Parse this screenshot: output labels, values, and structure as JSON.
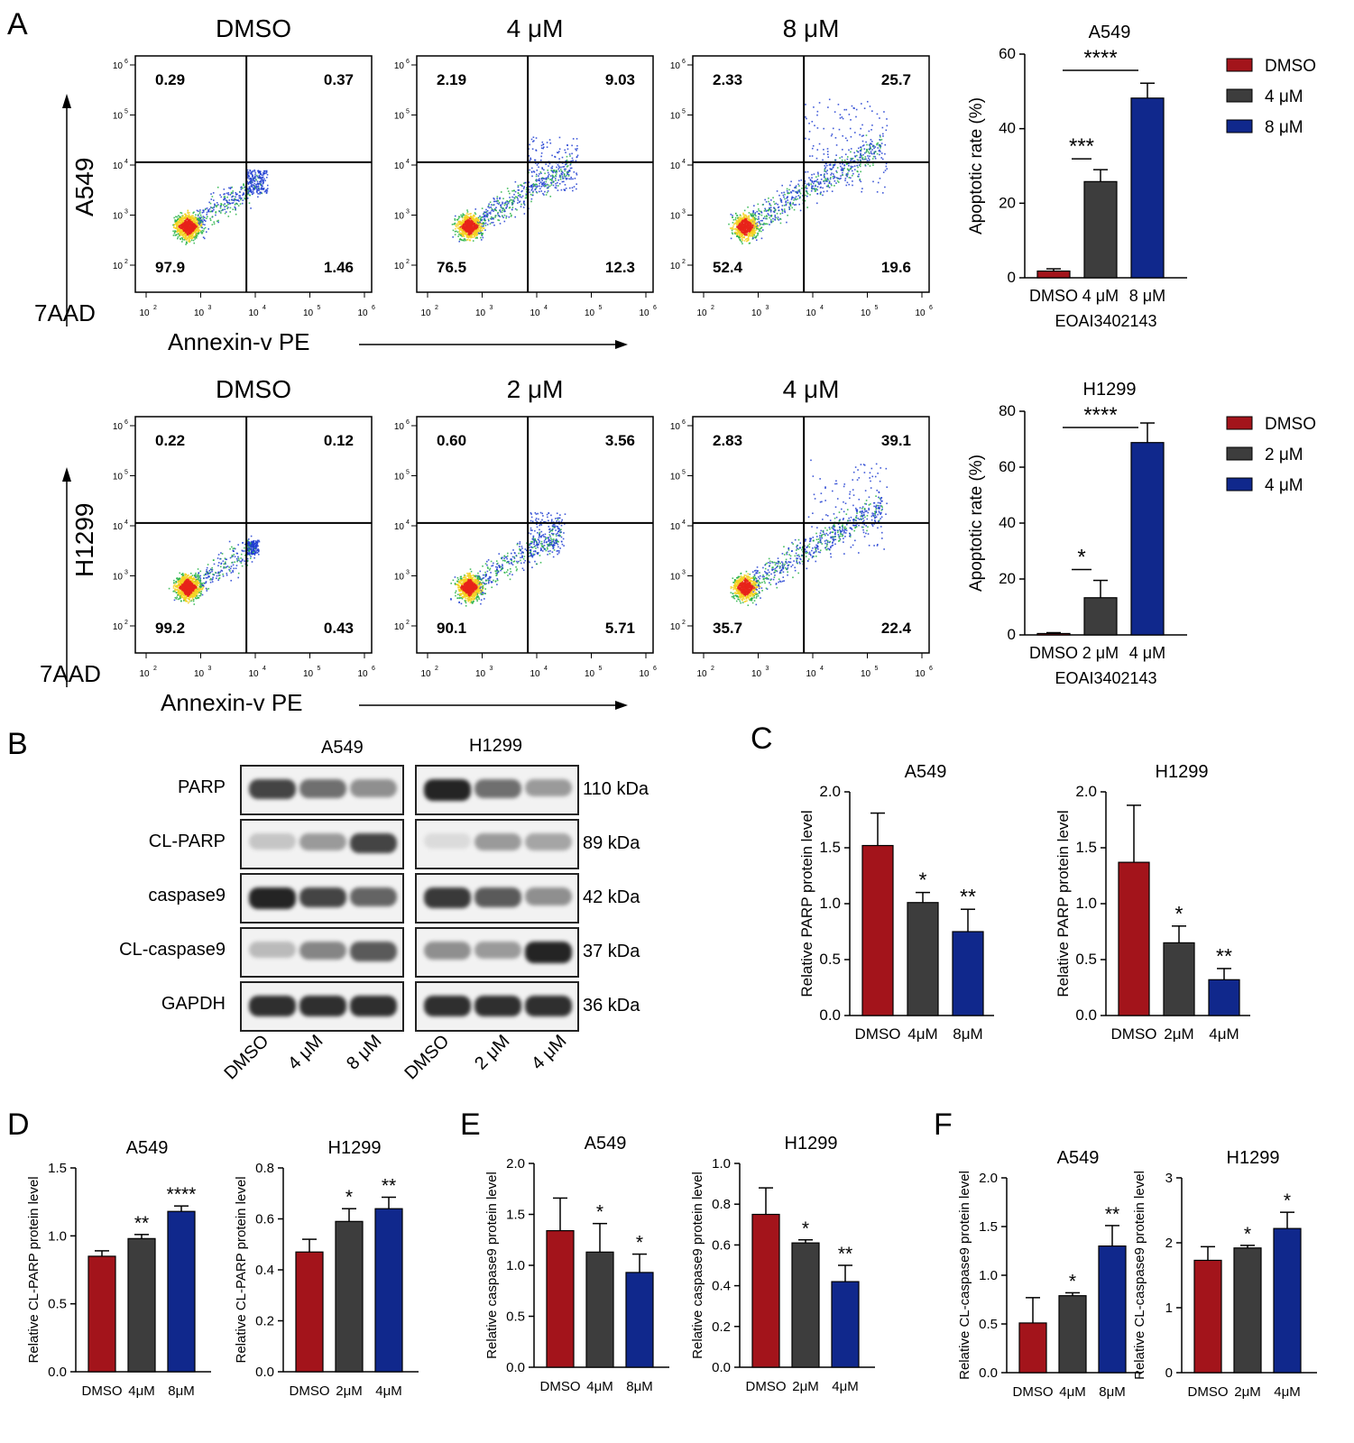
{
  "letters": {
    "A": "A",
    "B": "B",
    "C": "C",
    "D": "D",
    "E": "E",
    "F": "F"
  },
  "flow_common": {
    "y_label": "7AAD",
    "x_label": "Annexin-v  PE",
    "ticks": [
      "10",
      "10",
      "10",
      "10",
      "10"
    ],
    "tick_exps": [
      "2",
      "3",
      "4",
      "5",
      "6"
    ]
  },
  "flow_rows": [
    {
      "cell_line": "A549",
      "plots": [
        {
          "title": "DMSO",
          "q": [
            "0.29",
            "0.37",
            "97.9",
            "1.46"
          ],
          "spread": 0.25
        },
        {
          "title": "4 μM",
          "q": [
            "2.19",
            "9.03",
            "76.5",
            "12.3"
          ],
          "spread": 0.6
        },
        {
          "title": "8 μM",
          "q": [
            "2.33",
            "25.7",
            "52.4",
            "19.6"
          ],
          "spread": 1.0
        }
      ]
    },
    {
      "cell_line": "H1299",
      "plots": [
        {
          "title": "DMSO",
          "q": [
            "0.22",
            "0.12",
            "99.2",
            "0.43"
          ],
          "spread": 0.15
        },
        {
          "title": "2 μM",
          "q": [
            "0.60",
            "3.56",
            "90.1",
            "5.71"
          ],
          "spread": 0.45
        },
        {
          "title": "4 μM",
          "q": [
            "2.83",
            "39.1",
            "35.7",
            "22.4"
          ],
          "spread": 1.0
        }
      ]
    }
  ],
  "blot": {
    "headers": [
      "A549",
      "H1299"
    ],
    "proteins": [
      "PARP",
      "CL-PARP",
      "caspase9",
      "CL-caspase9",
      "GAPDH"
    ],
    "kda": [
      "110 kDa",
      "89 kDa",
      "42 kDa",
      "37 kDa",
      "36 kDa"
    ],
    "lanes_left": [
      "DMSO",
      "4 μM",
      "8 μM"
    ],
    "lanes_right": [
      "DMSO",
      "2 μM",
      "4 μM"
    ]
  },
  "colors": {
    "DMSO": "#a3141b",
    "mid": "#3d3d3d",
    "high": "#10288c"
  },
  "chart_data": [
    {
      "type": "bar",
      "title": "A549",
      "xlabel": "EOAI3402143",
      "ylabel": "Apoptotic rate (%)",
      "categories": [
        "DMSO",
        "4 μM",
        "8 μM"
      ],
      "values": [
        1.8,
        25.8,
        48.2
      ],
      "errors": [
        0.6,
        3.2,
        4.0
      ],
      "ylim": [
        0,
        60
      ],
      "yticks": [
        "0",
        "20",
        "40",
        "60"
      ],
      "legend": [
        "DMSO",
        "4 μM",
        "8 μM"
      ],
      "sig": [
        {
          "from": 0,
          "to": 1,
          "text": "***"
        },
        {
          "from": 0,
          "to": 2,
          "text": "****"
        }
      ]
    },
    {
      "type": "bar",
      "title": "H1299",
      "xlabel": "EOAI3402143",
      "ylabel": "Apoptotic rate (%)",
      "categories": [
        "DMSO",
        "2 μM",
        "4 μM"
      ],
      "values": [
        0.5,
        13.3,
        68.8
      ],
      "errors": [
        0.3,
        6.2,
        7.0
      ],
      "ylim": [
        0,
        80
      ],
      "yticks": [
        "0",
        "20",
        "40",
        "60",
        "80"
      ],
      "legend": [
        "DMSO",
        "2 μM",
        "4 μM"
      ],
      "sig": [
        {
          "from": 0,
          "to": 1,
          "text": "*"
        },
        {
          "from": 0,
          "to": 2,
          "text": "****"
        }
      ]
    },
    {
      "type": "bar",
      "title": "A549",
      "ylabel": "Relative PARP protein level",
      "categories": [
        "DMSO",
        "4μM",
        "8μM"
      ],
      "values": [
        1.52,
        1.01,
        0.75
      ],
      "errors": [
        0.29,
        0.09,
        0.2
      ],
      "ylim": [
        0,
        2.0
      ],
      "yticks": [
        "0.0",
        "0.5",
        "1.0",
        "1.5",
        "2.0"
      ],
      "stars": [
        "",
        "*",
        "**"
      ]
    },
    {
      "type": "bar",
      "title": "H1299",
      "ylabel": "Relative PARP protein level",
      "categories": [
        "DMSO",
        "2μM",
        "4μM"
      ],
      "values": [
        1.37,
        0.65,
        0.32
      ],
      "errors": [
        0.51,
        0.15,
        0.1
      ],
      "ylim": [
        0,
        2.0
      ],
      "yticks": [
        "0.0",
        "0.5",
        "1.0",
        "1.5",
        "2.0"
      ],
      "stars": [
        "",
        "*",
        "**"
      ]
    },
    {
      "type": "bar",
      "title": "A549",
      "ylabel": "Relative CL-PARP protein level",
      "categories": [
        "DMSO",
        "4μM",
        "8μM"
      ],
      "values": [
        0.85,
        0.98,
        1.18
      ],
      "errors": [
        0.04,
        0.03,
        0.04
      ],
      "ylim": [
        0,
        1.5
      ],
      "yticks": [
        "0.0",
        "0.5",
        "1.0",
        "1.5"
      ],
      "stars": [
        "",
        "**",
        "****"
      ]
    },
    {
      "type": "bar",
      "title": "H1299",
      "ylabel": "Relative CL-PARP protein level",
      "categories": [
        "DMSO",
        "2μM",
        "4μM"
      ],
      "values": [
        0.47,
        0.59,
        0.64
      ],
      "errors": [
        0.05,
        0.05,
        0.045
      ],
      "ylim": [
        0,
        0.8
      ],
      "yticks": [
        "0.0",
        "0.2",
        "0.4",
        "0.6",
        "0.8"
      ],
      "stars": [
        "",
        "*",
        "**"
      ]
    },
    {
      "type": "bar",
      "title": "A549",
      "ylabel": "Relative caspase9 protein level",
      "categories": [
        "DMSO",
        "4μM",
        "8μM"
      ],
      "values": [
        1.34,
        1.13,
        0.93
      ],
      "errors": [
        0.32,
        0.28,
        0.18
      ],
      "ylim": [
        0,
        2.0
      ],
      "yticks": [
        "0.0",
        "0.5",
        "1.0",
        "1.5",
        "2.0"
      ],
      "stars": [
        "",
        "*",
        "*"
      ]
    },
    {
      "type": "bar",
      "title": "H1299",
      "ylabel": "Relative caspase9 protein level",
      "categories": [
        "DMSO",
        "2μM",
        "4μM"
      ],
      "values": [
        0.75,
        0.61,
        0.42
      ],
      "errors": [
        0.13,
        0.015,
        0.08
      ],
      "ylim": [
        0,
        1.0
      ],
      "yticks": [
        "0.0",
        "0.2",
        "0.4",
        "0.6",
        "0.8",
        "1.0"
      ],
      "stars": [
        "",
        "*",
        "**"
      ]
    },
    {
      "type": "bar",
      "title": "A549",
      "ylabel": "Relative CL-caspase9 protein level",
      "categories": [
        "DMSO",
        "4μM",
        "8μM"
      ],
      "values": [
        0.51,
        0.79,
        1.3
      ],
      "errors": [
        0.26,
        0.03,
        0.21
      ],
      "ylim": [
        0,
        2.0
      ],
      "yticks": [
        "0.0",
        "0.5",
        "1.0",
        "1.5",
        "2.0"
      ],
      "stars": [
        "",
        "*",
        "**"
      ]
    },
    {
      "type": "bar",
      "title": "H1299",
      "ylabel": "Relative CL-caspase9 protein level",
      "categories": [
        "DMSO",
        "2μM",
        "4μM"
      ],
      "values": [
        1.73,
        1.92,
        2.22
      ],
      "errors": [
        0.21,
        0.04,
        0.25
      ],
      "ylim": [
        0,
        3
      ],
      "yticks": [
        "0",
        "1",
        "2",
        "3"
      ],
      "stars": [
        "",
        "*",
        "*"
      ]
    }
  ]
}
